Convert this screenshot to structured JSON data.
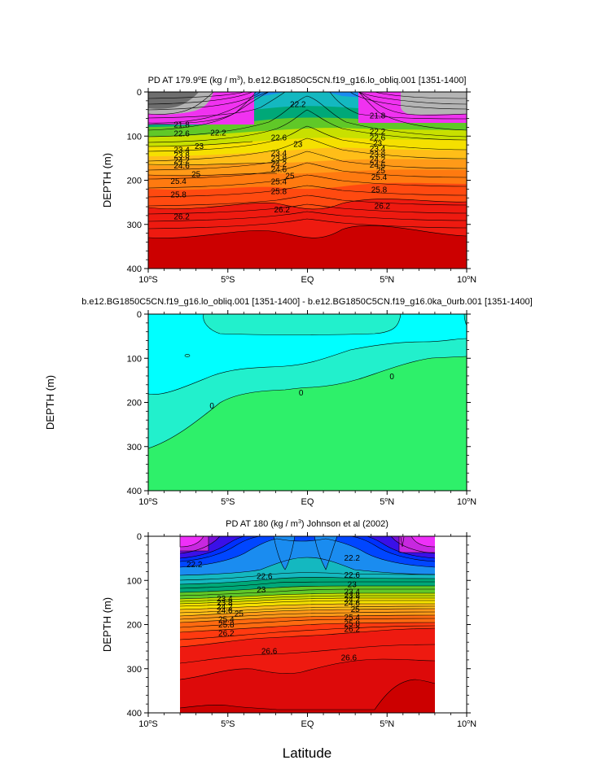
{
  "chart_data": [
    {
      "type": "heatmap",
      "title": "PD AT 179.9°E (kg / m³), b.e12.BG1850C5CN.f19_g16.lo_obliq.001 [1351-1400]",
      "title_parts": {
        "pre": "PD AT 179.9",
        "sup1": "o",
        "mid": "E (kg / m",
        "sup2": "3",
        "post": "), b.e12.BG1850C5CN.f19_g16.lo_obliq.001 [1351-1400]"
      },
      "ylabel": "DEPTH (m)",
      "xlim": [
        -10,
        10
      ],
      "ylim": [
        400,
        0
      ],
      "yticks": [
        0,
        100,
        200,
        300,
        400
      ],
      "xticks": [
        {
          "v": -10,
          "num": "10",
          "sfx": "S"
        },
        {
          "v": -5,
          "num": "5",
          "sfx": "S"
        },
        {
          "v": 0,
          "num": "",
          "sfx": "EQ"
        },
        {
          "v": 5,
          "num": "5",
          "sfx": "N"
        },
        {
          "v": 10,
          "num": "10",
          "sfx": "N"
        }
      ],
      "contour_levels": [
        21.8,
        22.2,
        22.6,
        23,
        23.4,
        23.8,
        24.2,
        24.6,
        25,
        25.4,
        25.8,
        26.2
      ],
      "contour_labels": [
        {
          "x": -7.9,
          "y": 74,
          "t": "21.8"
        },
        {
          "x": -5.6,
          "y": 92,
          "t": "22.2"
        },
        {
          "x": -7.9,
          "y": 94,
          "t": "22.6"
        },
        {
          "x": -6.8,
          "y": 123,
          "t": "23"
        },
        {
          "x": -7.9,
          "y": 131,
          "t": "23.4"
        },
        {
          "x": -7.9,
          "y": 143,
          "t": "23.8"
        },
        {
          "x": -7.9,
          "y": 155,
          "t": "24.2"
        },
        {
          "x": -7.9,
          "y": 167,
          "t": "24.6"
        },
        {
          "x": -7.0,
          "y": 186,
          "t": "25"
        },
        {
          "x": -8.1,
          "y": 202,
          "t": "25.4"
        },
        {
          "x": -8.1,
          "y": 232,
          "t": "25.8"
        },
        {
          "x": -7.9,
          "y": 282,
          "t": "26.2"
        },
        {
          "x": -0.6,
          "y": 28,
          "t": "22.2"
        },
        {
          "x": -1.8,
          "y": 103,
          "t": "22.6"
        },
        {
          "x": -0.6,
          "y": 118,
          "t": "23"
        },
        {
          "x": -1.8,
          "y": 138,
          "t": "23.4"
        },
        {
          "x": -1.8,
          "y": 150,
          "t": "23.8"
        },
        {
          "x": -1.8,
          "y": 163,
          "t": "24.2"
        },
        {
          "x": -1.8,
          "y": 175,
          "t": "24.6"
        },
        {
          "x": -1.1,
          "y": 190,
          "t": "25"
        },
        {
          "x": -1.8,
          "y": 203,
          "t": "25.4"
        },
        {
          "x": -1.8,
          "y": 225,
          "t": "25.8"
        },
        {
          "x": -1.6,
          "y": 266,
          "t": "26.2"
        },
        {
          "x": 4.4,
          "y": 53,
          "t": "21.8"
        },
        {
          "x": 4.4,
          "y": 89,
          "t": "22.2"
        },
        {
          "x": 4.4,
          "y": 103,
          "t": "22.6"
        },
        {
          "x": 4.4,
          "y": 116,
          "t": "23"
        },
        {
          "x": 4.4,
          "y": 128,
          "t": "23.4"
        },
        {
          "x": 4.4,
          "y": 141,
          "t": "23.8"
        },
        {
          "x": 4.4,
          "y": 153,
          "t": "24.2"
        },
        {
          "x": 4.4,
          "y": 165,
          "t": "24.6"
        },
        {
          "x": 4.6,
          "y": 178,
          "t": "25"
        },
        {
          "x": 4.5,
          "y": 193,
          "t": "25.4"
        },
        {
          "x": 4.5,
          "y": 221,
          "t": "25.8"
        },
        {
          "x": 4.7,
          "y": 258,
          "t": "26.2"
        }
      ]
    },
    {
      "type": "heatmap",
      "title": "b.e12.BG1850C5CN.f19_g16.lo_obliq.001 [1351-1400] - b.e12.BG1850C5CN.f19_g16.0ka_0urb.001 [1351-1400]",
      "ylabel": "DEPTH (m)",
      "xlim": [
        -10,
        10
      ],
      "ylim": [
        400,
        0
      ],
      "yticks": [
        0,
        100,
        200,
        300,
        400
      ],
      "xticks": [
        {
          "v": -10,
          "num": "10",
          "sfx": "S"
        },
        {
          "v": -5,
          "num": "5",
          "sfx": "S"
        },
        {
          "v": 0,
          "num": "",
          "sfx": "EQ"
        },
        {
          "v": 5,
          "num": "5",
          "sfx": "N"
        },
        {
          "v": 10,
          "num": "10",
          "sfx": "N"
        }
      ],
      "contour_levels": [
        0
      ],
      "contour_labels": [
        {
          "x": -6.0,
          "y": 207,
          "t": "0"
        },
        {
          "x": -0.4,
          "y": 178,
          "t": "0"
        },
        {
          "x": 5.3,
          "y": 141,
          "t": "0"
        }
      ]
    },
    {
      "type": "heatmap",
      "title": "PD AT 180 (kg / m³) Johnson et al (2002)",
      "title_parts": {
        "pre": "PD AT 180 (kg / m",
        "sup1": "3",
        "mid": ") Johnson et al (2002)",
        "sup2": "",
        "post": ""
      },
      "xlabel": "Latitude",
      "ylabel": "DEPTH (m)",
      "xlim": [
        -10,
        10
      ],
      "ylim": [
        400,
        0
      ],
      "yticks": [
        0,
        100,
        200,
        300,
        400
      ],
      "xticks": [
        {
          "v": -10,
          "num": "10",
          "sfx": "S"
        },
        {
          "v": -5,
          "num": "5",
          "sfx": "S"
        },
        {
          "v": 0,
          "num": "",
          "sfx": "EQ"
        },
        {
          "v": 5,
          "num": "5",
          "sfx": "N"
        },
        {
          "v": 10,
          "num": "10",
          "sfx": "N"
        }
      ],
      "data_xrange": [
        -8,
        8
      ],
      "contour_levels": [
        22.2,
        22.6,
        23,
        23.4,
        23.8,
        24.2,
        24.6,
        25,
        25.4,
        25.8,
        26.2,
        26.6
      ],
      "contour_labels": [
        {
          "x": -7.1,
          "y": 64,
          "t": "22.2"
        },
        {
          "x": -2.7,
          "y": 90,
          "t": "22.6"
        },
        {
          "x": -2.9,
          "y": 121,
          "t": "23"
        },
        {
          "x": -5.2,
          "y": 141,
          "t": "23.4"
        },
        {
          "x": -5.2,
          "y": 150,
          "t": "23.8"
        },
        {
          "x": -5.2,
          "y": 159,
          "t": "24.2"
        },
        {
          "x": -5.2,
          "y": 168,
          "t": "24.6"
        },
        {
          "x": -4.3,
          "y": 175,
          "t": "25"
        },
        {
          "x": -5.1,
          "y": 188,
          "t": "25.4"
        },
        {
          "x": -5.1,
          "y": 200,
          "t": "25.8"
        },
        {
          "x": -5.1,
          "y": 219,
          "t": "26.2"
        },
        {
          "x": -2.4,
          "y": 260,
          "t": "26.6"
        },
        {
          "x": 2.8,
          "y": 49,
          "t": "22.2"
        },
        {
          "x": 2.8,
          "y": 88,
          "t": "22.6"
        },
        {
          "x": 2.8,
          "y": 109,
          "t": "23"
        },
        {
          "x": 2.8,
          "y": 125,
          "t": "23.4"
        },
        {
          "x": 2.8,
          "y": 134,
          "t": "23.8"
        },
        {
          "x": 2.8,
          "y": 143,
          "t": "24.2"
        },
        {
          "x": 2.8,
          "y": 151,
          "t": "24.6"
        },
        {
          "x": 3.0,
          "y": 165,
          "t": "25"
        },
        {
          "x": 2.8,
          "y": 183,
          "t": "25.4"
        },
        {
          "x": 2.8,
          "y": 197,
          "t": "25.8"
        },
        {
          "x": 2.8,
          "y": 210,
          "t": "26.2"
        },
        {
          "x": 2.6,
          "y": 275,
          "t": "26.6"
        }
      ]
    }
  ]
}
